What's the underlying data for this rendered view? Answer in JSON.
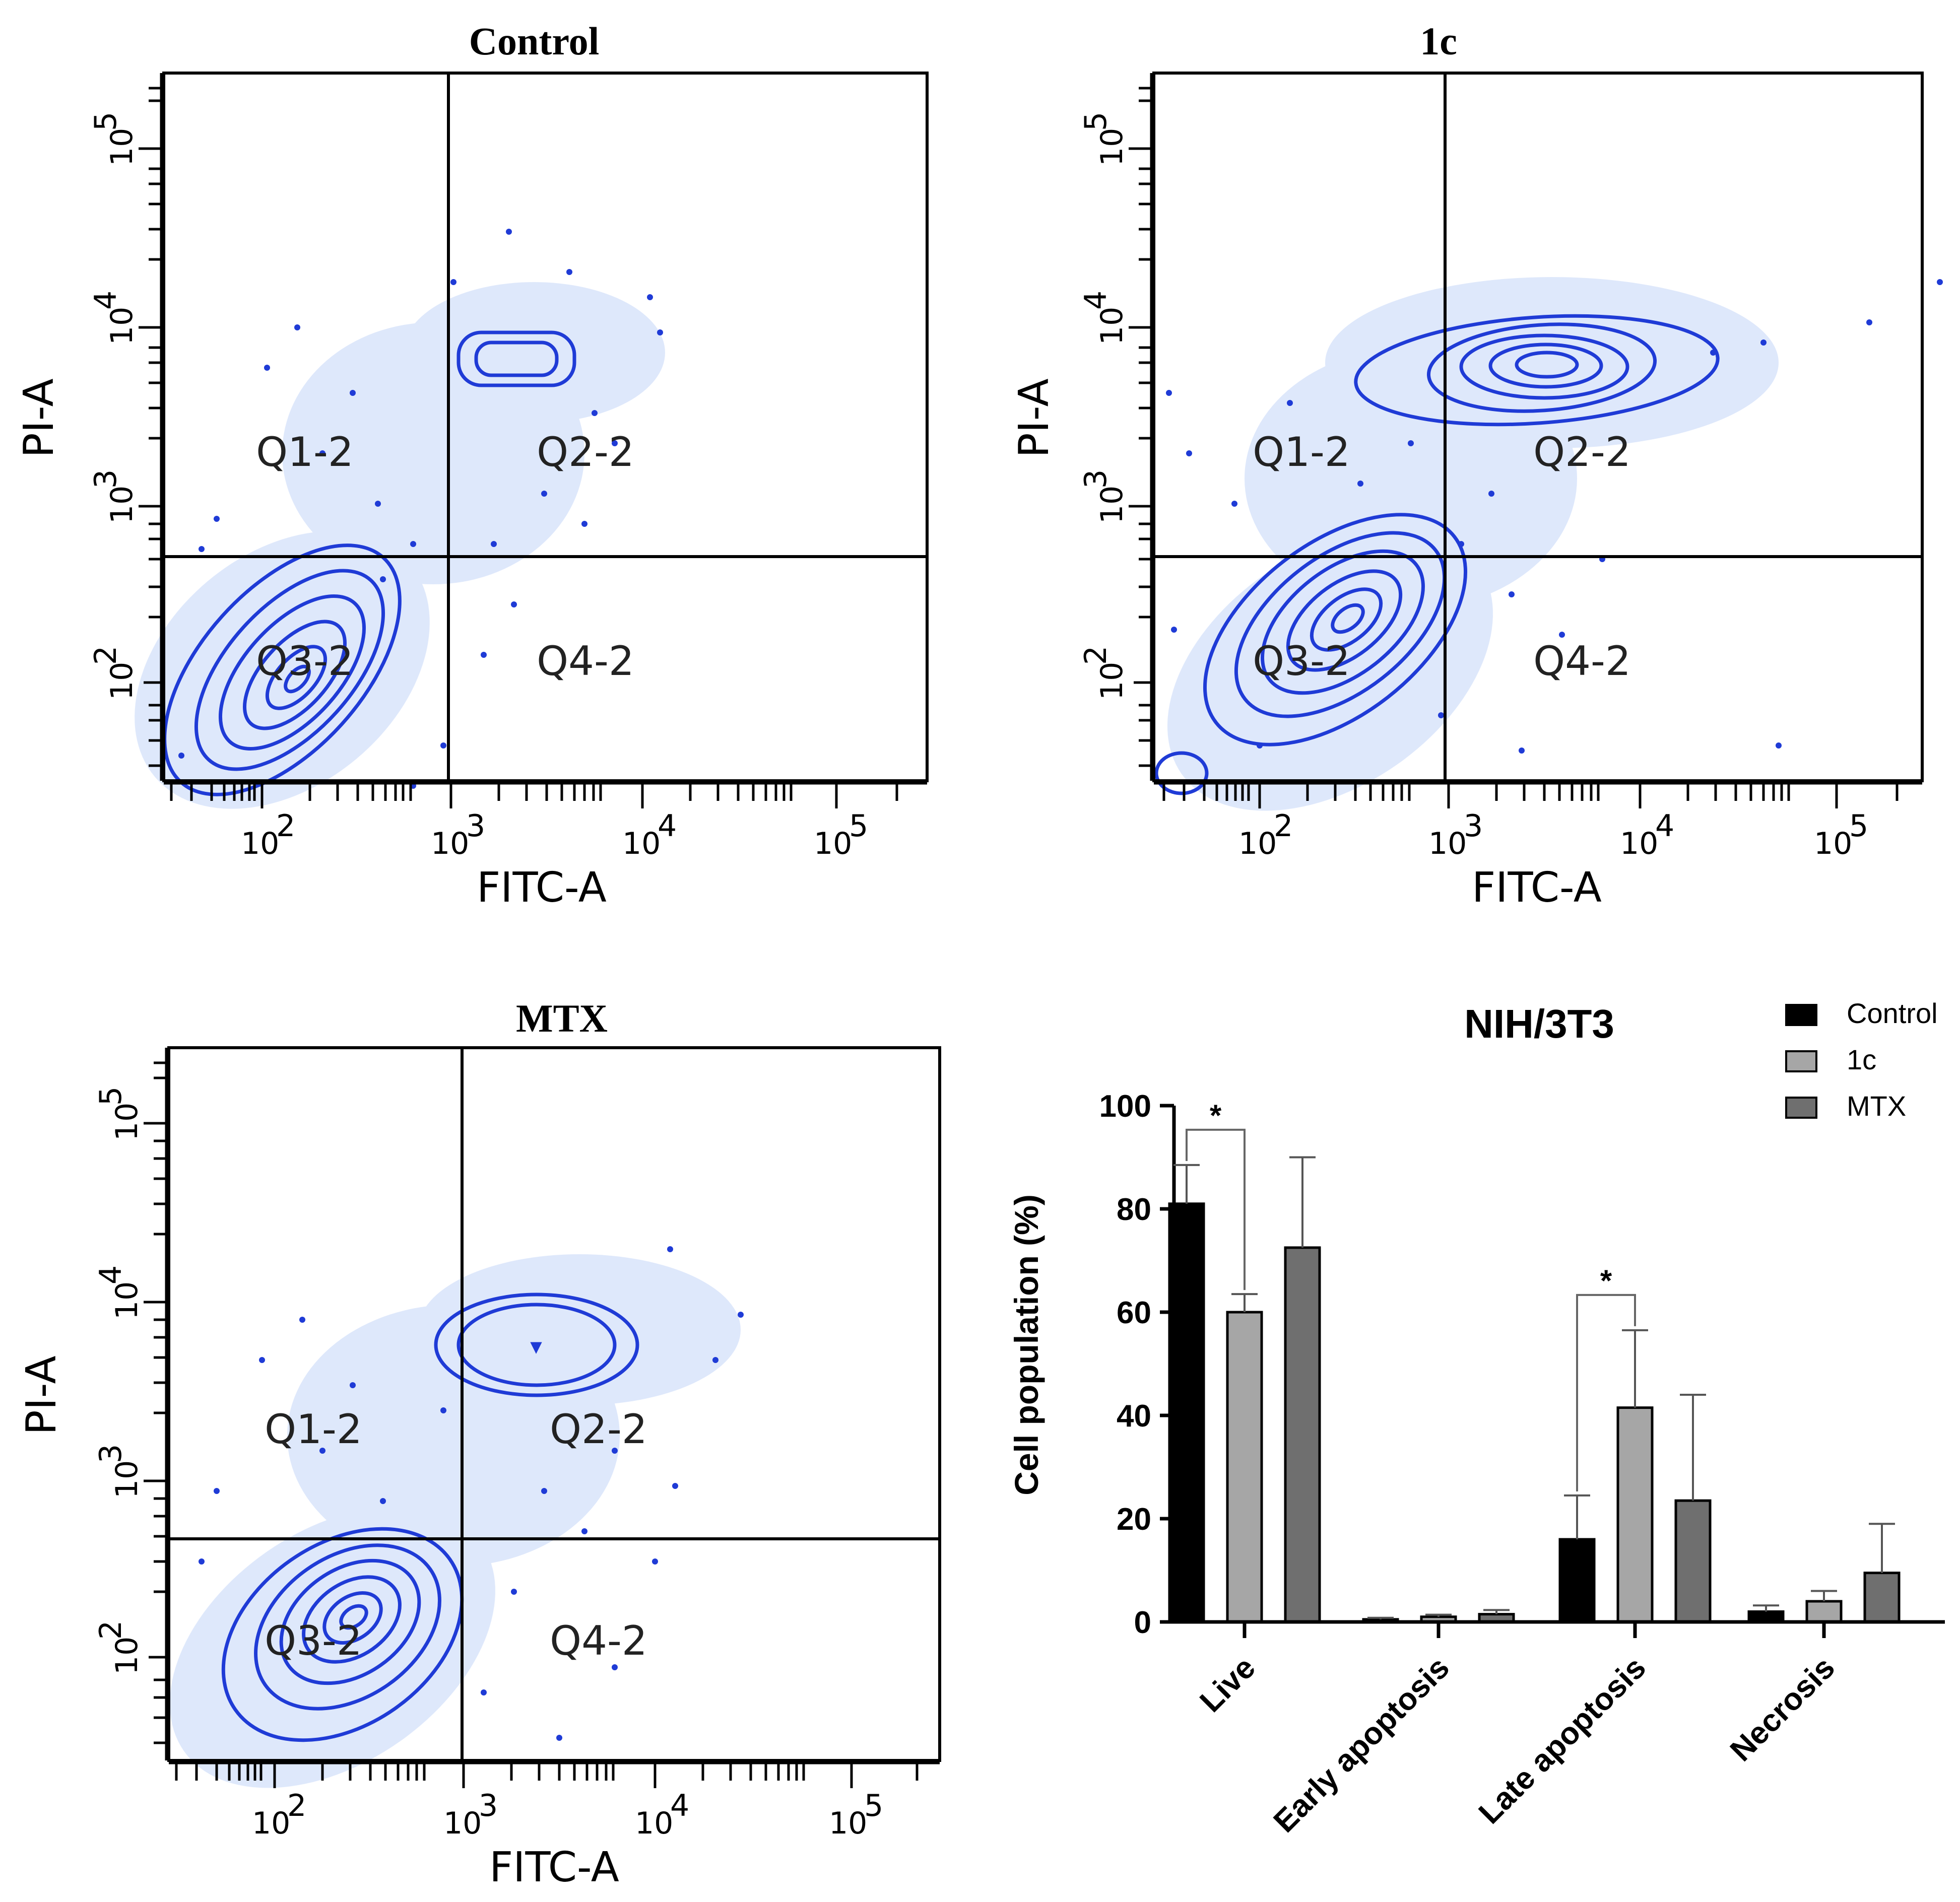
{
  "colors": {
    "contour": "#1f3bd6",
    "cloud": "#dbe6fb",
    "control": "#000000",
    "c1": "#a6a6a6",
    "mtx": "#6f6f6f"
  },
  "flow_panels": [
    {
      "title": "Control",
      "xlabel": "FITC-A",
      "ylabel": "PI-A",
      "q1": "Q1-2",
      "q2": "Q2-2",
      "q3": "Q3-2",
      "q4": "Q4-2",
      "x_ticks": [
        "10",
        "10",
        "10",
        "10"
      ],
      "x_exps": [
        "2",
        "3",
        "4",
        "5"
      ],
      "y_ticks": [
        "10",
        "10",
        "10",
        "10"
      ],
      "y_exps": [
        "2",
        "3",
        "4",
        "5"
      ]
    },
    {
      "title": "1c",
      "xlabel": "FITC-A",
      "ylabel": "PI-A",
      "q1": "Q1-2",
      "q2": "Q2-2",
      "q3": "Q3-2",
      "q4": "Q4-2",
      "x_ticks": [
        "10",
        "10",
        "10",
        "10"
      ],
      "x_exps": [
        "2",
        "3",
        "4",
        "5"
      ],
      "y_ticks": [
        "10",
        "10",
        "10",
        "10"
      ],
      "y_exps": [
        "2",
        "3",
        "4",
        "5"
      ]
    },
    {
      "title": "MTX",
      "xlabel": "FITC-A",
      "ylabel": "PI-A",
      "q1": "Q1-2",
      "q2": "Q2-2",
      "q3": "Q3-2",
      "q4": "Q4-2",
      "x_ticks": [
        "10",
        "10",
        "10",
        "10"
      ],
      "x_exps": [
        "2",
        "3",
        "4",
        "5"
      ],
      "y_ticks": [
        "10",
        "10",
        "10",
        "10"
      ],
      "y_exps": [
        "2",
        "3",
        "4",
        "5"
      ]
    }
  ],
  "chart_data": {
    "type": "bar",
    "title": "NIH/3T3",
    "xlabel": "",
    "ylabel": "Cell population (%)",
    "ylim": [
      0,
      100
    ],
    "yticks": [
      0,
      20,
      40,
      60,
      80,
      100
    ],
    "categories": [
      "Live",
      "Early apoptosis",
      "Late apoptosis",
      "Necrosis"
    ],
    "series": [
      {
        "name": "Control",
        "values": [
          81,
          0.5,
          16,
          2
        ],
        "errors": [
          7.5,
          0.3,
          8.5,
          1.2
        ]
      },
      {
        "name": "1c",
        "values": [
          60,
          1,
          41.5,
          4
        ],
        "errors": [
          3.5,
          0.4,
          15,
          2
        ]
      },
      {
        "name": "MTX",
        "values": [
          72.5,
          1.5,
          23.5,
          9.5
        ],
        "errors": [
          17.5,
          0.8,
          20.5,
          9.5
        ]
      }
    ],
    "significance": [
      {
        "category": "Live",
        "between": [
          "Control",
          "1c"
        ],
        "label": "*"
      },
      {
        "category": "Late apoptosis",
        "between": [
          "Control",
          "1c"
        ],
        "label": "*"
      }
    ]
  }
}
